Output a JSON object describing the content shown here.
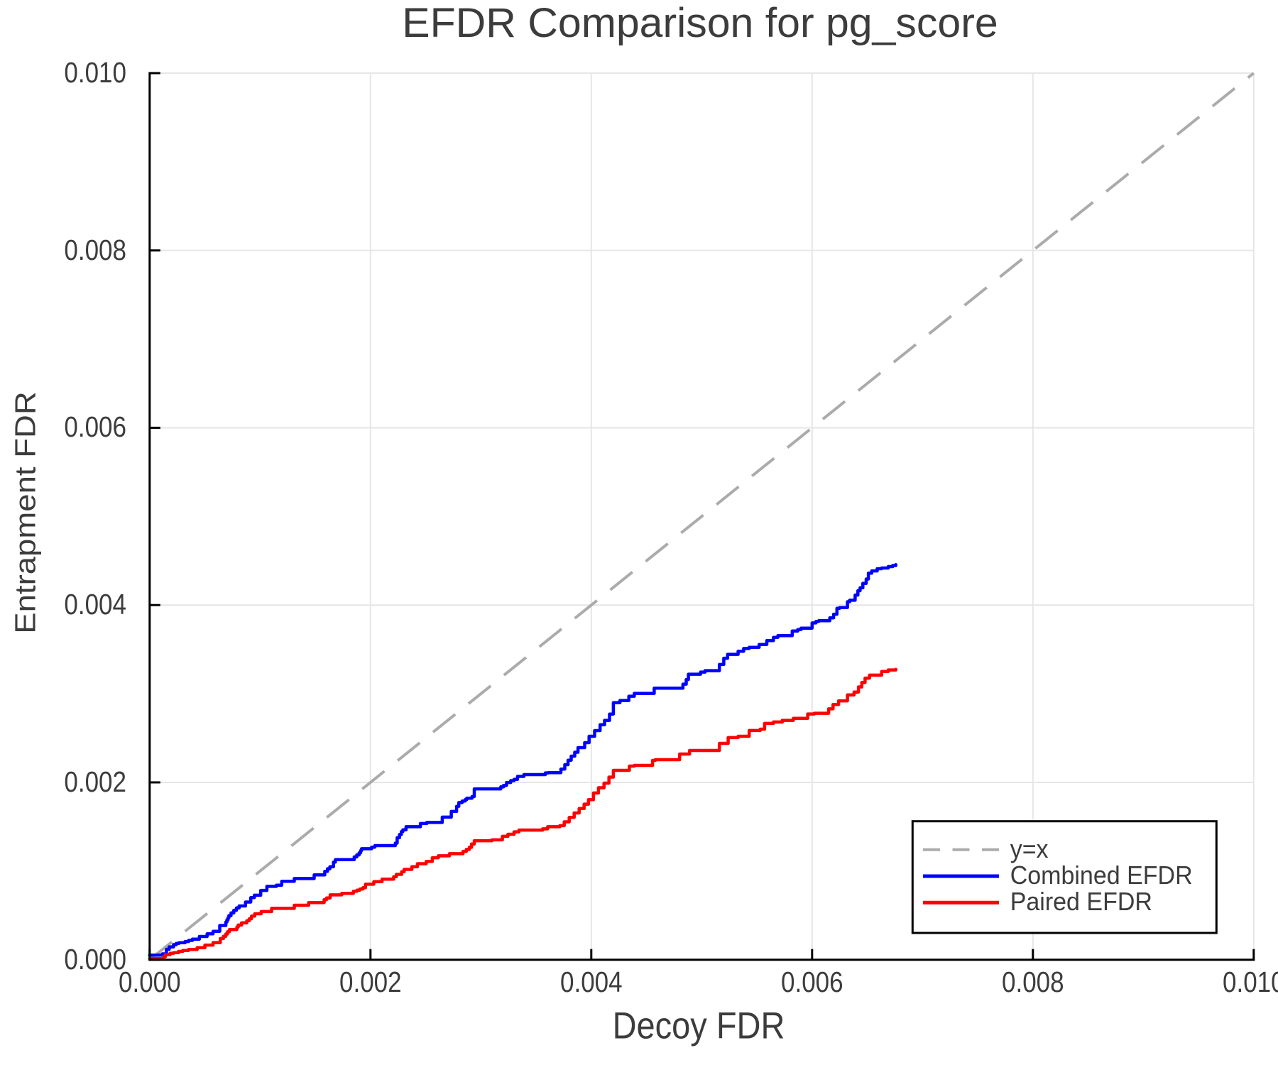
{
  "title": "EFDR Comparison for pg_score",
  "chart_data": {
    "type": "line",
    "title": "EFDR Comparison for pg_score",
    "xlabel": "Decoy FDR",
    "ylabel": "Entrapment FDR",
    "xlim": [
      0.0,
      0.01
    ],
    "ylim": [
      0.0,
      0.01
    ],
    "xticks": [
      "0.000",
      "0.002",
      "0.004",
      "0.006",
      "0.008",
      "0.010"
    ],
    "yticks": [
      "0.000",
      "0.002",
      "0.004",
      "0.006",
      "0.008",
      "0.010"
    ],
    "grid": true,
    "grid_color": "#e6e6e6",
    "axis_color": "#000000",
    "text_color": "#3c3c3c",
    "legend": {
      "position": "bottom-right",
      "border_color": "#000000",
      "background": "#ffffff",
      "entries": [
        {
          "label": "y=x",
          "color": "#ababab",
          "style": "dashed"
        },
        {
          "label": "Combined EFDR",
          "color": "#0000ff",
          "style": "solid"
        },
        {
          "label": "Paired EFDR",
          "color": "#ff0000",
          "style": "solid"
        }
      ]
    },
    "reference_line": {
      "label": "y=x",
      "from": [
        0.0,
        0.0
      ],
      "to": [
        0.01,
        0.01
      ],
      "color": "#ababab",
      "style": "dashed"
    },
    "series_units": "points are [x, y] pairs in thousandths (multiply by 0.001 to get axis units)",
    "series": [
      {
        "name": "Combined EFDR",
        "color": "#0000ff",
        "step": true,
        "points": [
          [
            0.0,
            0.051
          ],
          [
            0.115,
            0.066
          ],
          [
            0.152,
            0.118
          ],
          [
            0.177,
            0.145
          ],
          [
            0.216,
            0.17
          ],
          [
            0.241,
            0.184
          ],
          [
            0.266,
            0.191
          ],
          [
            0.32,
            0.205
          ],
          [
            0.353,
            0.218
          ],
          [
            0.387,
            0.232
          ],
          [
            0.45,
            0.262
          ],
          [
            0.52,
            0.292
          ],
          [
            0.574,
            0.32
          ],
          [
            0.635,
            0.386
          ],
          [
            0.69,
            0.425
          ],
          [
            0.7,
            0.45
          ],
          [
            0.71,
            0.474
          ],
          [
            0.718,
            0.497
          ],
          [
            0.737,
            0.528
          ],
          [
            0.762,
            0.557
          ],
          [
            0.786,
            0.584
          ],
          [
            0.81,
            0.606
          ],
          [
            0.868,
            0.65
          ],
          [
            0.916,
            0.7
          ],
          [
            0.948,
            0.727
          ],
          [
            1.006,
            0.782
          ],
          [
            1.062,
            0.827
          ],
          [
            1.148,
            0.841
          ],
          [
            1.196,
            0.884
          ],
          [
            1.31,
            0.915
          ],
          [
            1.49,
            0.956
          ],
          [
            1.586,
            0.996
          ],
          [
            1.61,
            1.026
          ],
          [
            1.632,
            1.048
          ],
          [
            1.665,
            1.101
          ],
          [
            1.682,
            1.128
          ],
          [
            1.853,
            1.16
          ],
          [
            1.876,
            1.182
          ],
          [
            1.897,
            1.205
          ],
          [
            1.911,
            1.231
          ],
          [
            1.919,
            1.252
          ],
          [
            2.01,
            1.269
          ],
          [
            2.04,
            1.287
          ],
          [
            2.225,
            1.315
          ],
          [
            2.242,
            1.376
          ],
          [
            2.263,
            1.412
          ],
          [
            2.279,
            1.444
          ],
          [
            2.293,
            1.465
          ],
          [
            2.322,
            1.5
          ],
          [
            2.452,
            1.536
          ],
          [
            2.51,
            1.548
          ],
          [
            2.65,
            1.608
          ],
          [
            2.732,
            1.672
          ],
          [
            2.78,
            1.73
          ],
          [
            2.8,
            1.772
          ],
          [
            2.83,
            1.79
          ],
          [
            2.858,
            1.806
          ],
          [
            2.872,
            1.822
          ],
          [
            2.92,
            1.84
          ],
          [
            2.94,
            1.927
          ],
          [
            3.18,
            1.949
          ],
          [
            3.205,
            1.966
          ],
          [
            3.232,
            1.999
          ],
          [
            3.27,
            2.02
          ],
          [
            3.3,
            2.034
          ],
          [
            3.332,
            2.068
          ],
          [
            3.39,
            2.088
          ],
          [
            3.583,
            2.107
          ],
          [
            3.61,
            2.11
          ],
          [
            3.725,
            2.15
          ],
          [
            3.76,
            2.2
          ],
          [
            3.79,
            2.25
          ],
          [
            3.818,
            2.296
          ],
          [
            3.85,
            2.34
          ],
          [
            3.88,
            2.392
          ],
          [
            3.94,
            2.448
          ],
          [
            3.98,
            2.52
          ],
          [
            4.03,
            2.584
          ],
          [
            4.08,
            2.65
          ],
          [
            4.12,
            2.7
          ],
          [
            4.165,
            2.771
          ],
          [
            4.2,
            2.9
          ],
          [
            4.26,
            2.924
          ],
          [
            4.34,
            2.972
          ],
          [
            4.39,
            3.004
          ],
          [
            4.57,
            3.062
          ],
          [
            4.83,
            3.108
          ],
          [
            4.86,
            3.16
          ],
          [
            4.88,
            3.22
          ],
          [
            4.99,
            3.244
          ],
          [
            5.03,
            3.26
          ],
          [
            5.16,
            3.33
          ],
          [
            5.2,
            3.4
          ],
          [
            5.235,
            3.444
          ],
          [
            5.33,
            3.48
          ],
          [
            5.38,
            3.51
          ],
          [
            5.43,
            3.524
          ],
          [
            5.52,
            3.556
          ],
          [
            5.59,
            3.6
          ],
          [
            5.65,
            3.636
          ],
          [
            5.69,
            3.655
          ],
          [
            5.82,
            3.707
          ],
          [
            5.87,
            3.724
          ],
          [
            5.9,
            3.74
          ],
          [
            6.0,
            3.798
          ],
          [
            6.035,
            3.815
          ],
          [
            6.06,
            3.823
          ],
          [
            6.16,
            3.856
          ],
          [
            6.195,
            3.897
          ],
          [
            6.225,
            3.964
          ],
          [
            6.25,
            3.972
          ],
          [
            6.32,
            4.038
          ],
          [
            6.34,
            4.055
          ],
          [
            6.39,
            4.113
          ],
          [
            6.415,
            4.162
          ],
          [
            6.435,
            4.195
          ],
          [
            6.46,
            4.245
          ],
          [
            6.49,
            4.294
          ],
          [
            6.51,
            4.36
          ],
          [
            6.54,
            4.385
          ],
          [
            6.59,
            4.41
          ],
          [
            6.63,
            4.418
          ],
          [
            6.69,
            4.434
          ],
          [
            6.73,
            4.446
          ],
          [
            6.758,
            4.456
          ]
        ]
      },
      {
        "name": "Paired EFDR",
        "color": "#ff0000",
        "step": true,
        "points": [
          [
            0.0,
            0.012
          ],
          [
            0.125,
            0.034
          ],
          [
            0.142,
            0.058
          ],
          [
            0.185,
            0.073
          ],
          [
            0.218,
            0.079
          ],
          [
            0.262,
            0.094
          ],
          [
            0.3,
            0.104
          ],
          [
            0.352,
            0.115
          ],
          [
            0.43,
            0.135
          ],
          [
            0.5,
            0.165
          ],
          [
            0.574,
            0.193
          ],
          [
            0.64,
            0.239
          ],
          [
            0.668,
            0.264
          ],
          [
            0.69,
            0.29
          ],
          [
            0.705,
            0.315
          ],
          [
            0.722,
            0.34
          ],
          [
            0.79,
            0.368
          ],
          [
            0.802,
            0.391
          ],
          [
            0.832,
            0.416
          ],
          [
            0.88,
            0.44
          ],
          [
            0.902,
            0.462
          ],
          [
            0.922,
            0.492
          ],
          [
            0.952,
            0.518
          ],
          [
            1.01,
            0.543
          ],
          [
            1.105,
            0.579
          ],
          [
            1.31,
            0.614
          ],
          [
            1.44,
            0.645
          ],
          [
            1.58,
            0.677
          ],
          [
            1.602,
            0.697
          ],
          [
            1.635,
            0.731
          ],
          [
            1.74,
            0.748
          ],
          [
            1.845,
            0.772
          ],
          [
            1.878,
            0.785
          ],
          [
            1.905,
            0.798
          ],
          [
            1.932,
            0.812
          ],
          [
            1.955,
            0.851
          ],
          [
            2.03,
            0.88
          ],
          [
            2.105,
            0.908
          ],
          [
            2.21,
            0.936
          ],
          [
            2.235,
            0.963
          ],
          [
            2.282,
            0.992
          ],
          [
            2.305,
            1.019
          ],
          [
            2.375,
            1.048
          ],
          [
            2.425,
            1.083
          ],
          [
            2.505,
            1.108
          ],
          [
            2.56,
            1.15
          ],
          [
            2.615,
            1.172
          ],
          [
            2.715,
            1.196
          ],
          [
            2.838,
            1.222
          ],
          [
            2.868,
            1.244
          ],
          [
            2.895,
            1.268
          ],
          [
            2.915,
            1.305
          ],
          [
            2.94,
            1.342
          ],
          [
            3.1,
            1.352
          ],
          [
            3.195,
            1.392
          ],
          [
            3.245,
            1.415
          ],
          [
            3.3,
            1.442
          ],
          [
            3.345,
            1.462
          ],
          [
            3.56,
            1.476
          ],
          [
            3.605,
            1.5
          ],
          [
            3.715,
            1.512
          ],
          [
            3.755,
            1.555
          ],
          [
            3.8,
            1.605
          ],
          [
            3.845,
            1.655
          ],
          [
            3.89,
            1.705
          ],
          [
            3.935,
            1.755
          ],
          [
            3.975,
            1.805
          ],
          [
            4.02,
            1.88
          ],
          [
            4.065,
            1.94
          ],
          [
            4.115,
            1.992
          ],
          [
            4.16,
            2.06
          ],
          [
            4.2,
            2.136
          ],
          [
            4.345,
            2.184
          ],
          [
            4.39,
            2.192
          ],
          [
            4.555,
            2.248
          ],
          [
            4.58,
            2.256
          ],
          [
            4.8,
            2.32
          ],
          [
            4.89,
            2.36
          ],
          [
            5.16,
            2.44
          ],
          [
            5.24,
            2.505
          ],
          [
            5.33,
            2.52
          ],
          [
            5.43,
            2.585
          ],
          [
            5.53,
            2.6
          ],
          [
            5.57,
            2.665
          ],
          [
            5.65,
            2.681
          ],
          [
            5.73,
            2.7
          ],
          [
            5.83,
            2.722
          ],
          [
            5.96,
            2.772
          ],
          [
            6.02,
            2.78
          ],
          [
            6.15,
            2.829
          ],
          [
            6.19,
            2.879
          ],
          [
            6.24,
            2.92
          ],
          [
            6.32,
            2.986
          ],
          [
            6.38,
            3.019
          ],
          [
            6.42,
            3.077
          ],
          [
            6.45,
            3.127
          ],
          [
            6.48,
            3.176
          ],
          [
            6.52,
            3.21
          ],
          [
            6.63,
            3.251
          ],
          [
            6.69,
            3.268
          ],
          [
            6.758,
            3.275
          ]
        ]
      }
    ]
  }
}
